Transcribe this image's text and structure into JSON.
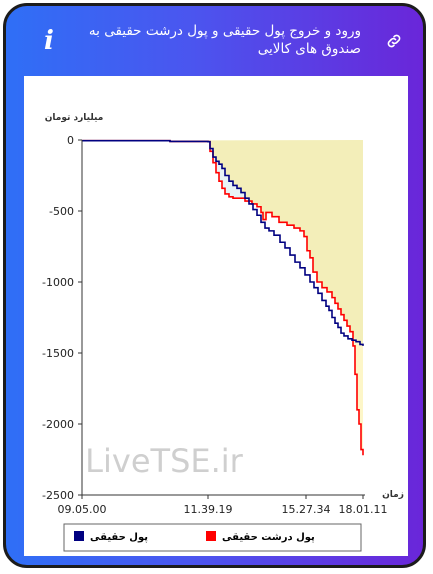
{
  "header": {
    "title": "ورود و خروج پول حقیقی و پول درشت حقیقی به صندوق های کالایی",
    "info_icon": "info-icon",
    "link_icon": "link-icon"
  },
  "watermark": "LiveTSE.ir",
  "chart_data": {
    "type": "line",
    "ylabel": "میلیارد تومان",
    "xlabel": "زمان",
    "ylim": [
      -2500,
      0
    ],
    "yticks": [
      0,
      -500,
      -1000,
      -1500,
      -2000,
      -2500
    ],
    "xtick_labels": [
      "09.05.00",
      "11.39.19",
      "15.27.34",
      "18.01.11"
    ],
    "xtick_positions": [
      0,
      126,
      224,
      281
    ],
    "series": [
      {
        "name": "پول حقیقی",
        "color": "#000080",
        "points": [
          [
            0,
            -5
          ],
          [
            88,
            -10
          ],
          [
            126,
            -12
          ],
          [
            128,
            -60
          ],
          [
            131,
            -120
          ],
          [
            134,
            -150
          ],
          [
            137,
            -170
          ],
          [
            140,
            -200
          ],
          [
            143,
            -250
          ],
          [
            147,
            -290
          ],
          [
            151,
            -320
          ],
          [
            155,
            -340
          ],
          [
            159,
            -370
          ],
          [
            163,
            -410
          ],
          [
            167,
            -450
          ],
          [
            171,
            -490
          ],
          [
            175,
            -530
          ],
          [
            179,
            -580
          ],
          [
            183,
            -620
          ],
          [
            187,
            -640
          ],
          [
            192,
            -670
          ],
          [
            198,
            -720
          ],
          [
            203,
            -760
          ],
          [
            208,
            -810
          ],
          [
            213,
            -860
          ],
          [
            218,
            -900
          ],
          [
            223,
            -950
          ],
          [
            228,
            -1000
          ],
          [
            232,
            -1040
          ],
          [
            236,
            -1080
          ],
          [
            240,
            -1130
          ],
          [
            244,
            -1170
          ],
          [
            247,
            -1200
          ],
          [
            250,
            -1250
          ],
          [
            253,
            -1290
          ],
          [
            256,
            -1320
          ],
          [
            259,
            -1360
          ],
          [
            262,
            -1380
          ],
          [
            266,
            -1400
          ],
          [
            270,
            -1410
          ],
          [
            274,
            -1420
          ],
          [
            278,
            -1440
          ],
          [
            281,
            -1450
          ]
        ]
      },
      {
        "name": "پول درشت حقیقی",
        "color": "#ff0000",
        "points": [
          [
            0,
            -5
          ],
          [
            88,
            -10
          ],
          [
            126,
            -12
          ],
          [
            128,
            -80
          ],
          [
            131,
            -160
          ],
          [
            134,
            -230
          ],
          [
            137,
            -290
          ],
          [
            140,
            -340
          ],
          [
            143,
            -380
          ],
          [
            147,
            -400
          ],
          [
            151,
            -410
          ],
          [
            163,
            -430
          ],
          [
            170,
            -450
          ],
          [
            175,
            -470
          ],
          [
            179,
            -510
          ],
          [
            181,
            -560
          ],
          [
            184,
            -510
          ],
          [
            190,
            -540
          ],
          [
            197,
            -580
          ],
          [
            205,
            -600
          ],
          [
            212,
            -620
          ],
          [
            218,
            -640
          ],
          [
            222,
            -680
          ],
          [
            225,
            -780
          ],
          [
            228,
            -830
          ],
          [
            231,
            -930
          ],
          [
            235,
            -1000
          ],
          [
            240,
            -1040
          ],
          [
            245,
            -1070
          ],
          [
            250,
            -1110
          ],
          [
            253,
            -1150
          ],
          [
            256,
            -1190
          ],
          [
            259,
            -1230
          ],
          [
            262,
            -1270
          ],
          [
            265,
            -1310
          ],
          [
            268,
            -1350
          ],
          [
            271,
            -1450
          ],
          [
            273,
            -1650
          ],
          [
            275,
            -1900
          ],
          [
            277,
            -2000
          ],
          [
            279,
            -2180
          ],
          [
            281,
            -2220
          ]
        ]
      }
    ],
    "fill_colors": {
      "below_real": "#e8f3f6",
      "between": "#f3eeb9",
      "below_big": "#fdf6c8"
    }
  }
}
